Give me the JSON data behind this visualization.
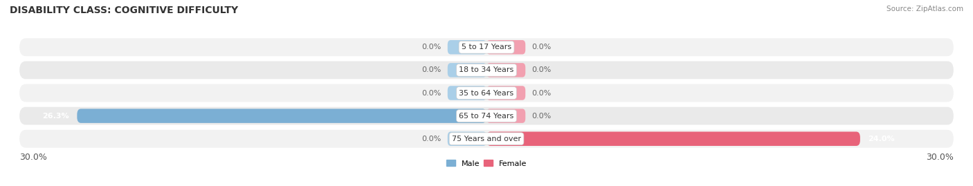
{
  "title": "DISABILITY CLASS: COGNITIVE DIFFICULTY",
  "source": "Source: ZipAtlas.com",
  "categories": [
    "5 to 17 Years",
    "18 to 34 Years",
    "35 to 64 Years",
    "65 to 74 Years",
    "75 Years and over"
  ],
  "male_values": [
    0.0,
    0.0,
    0.0,
    26.3,
    0.0
  ],
  "female_values": [
    0.0,
    0.0,
    0.0,
    0.0,
    24.0
  ],
  "male_color": "#7bafd4",
  "female_color": "#e8637a",
  "male_stub_color": "#aacfe8",
  "female_stub_color": "#f2a0b0",
  "row_colors": [
    "#f2f2f2",
    "#eaeaea"
  ],
  "axis_min": -30.0,
  "axis_max": 30.0,
  "stub_size": 2.5,
  "title_fontsize": 10,
  "label_fontsize": 8,
  "value_fontsize": 8,
  "tick_fontsize": 9,
  "background_color": "#ffffff"
}
